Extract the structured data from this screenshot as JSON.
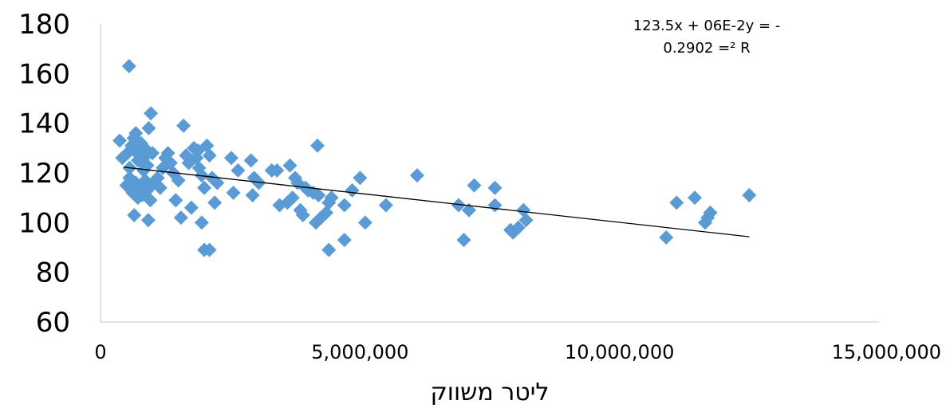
{
  "chart_data": {
    "type": "scatter",
    "title": "",
    "xlabel": "ליטר משווק",
    "ylabel": "",
    "xlim": [
      0,
      15000000
    ],
    "ylim": [
      60,
      180
    ],
    "x_ticks": [
      0,
      5000000,
      10000000,
      15000000
    ],
    "x_tick_labels": [
      "0",
      "5,000,000",
      "10,000,000",
      "15,000,000"
    ],
    "y_ticks": [
      60,
      80,
      100,
      120,
      140,
      160,
      180
    ],
    "y_tick_labels": [
      "60",
      "80",
      "100",
      "120",
      "140",
      "160",
      "180"
    ],
    "grid": false,
    "marker": "diamond",
    "marker_color": "#5B9BD5",
    "trendline": {
      "type": "linear",
      "x_start": 450000,
      "y_start": 122.3,
      "x_end": 12500000,
      "y_end": 94.3,
      "color": "#000000"
    },
    "equation": {
      "line1": "123.5x + 06E-2y = -",
      "line2": "0.2902 =² R"
    },
    "points": [
      [
        550000,
        163
      ],
      [
        370000,
        133
      ],
      [
        420000,
        126
      ],
      [
        520000,
        128
      ],
      [
        560000,
        122
      ],
      [
        600000,
        131
      ],
      [
        640000,
        134
      ],
      [
        680000,
        136
      ],
      [
        700000,
        129
      ],
      [
        720000,
        125
      ],
      [
        750000,
        127
      ],
      [
        780000,
        132
      ],
      [
        800000,
        124
      ],
      [
        830000,
        121
      ],
      [
        850000,
        130
      ],
      [
        880000,
        127
      ],
      [
        900000,
        123
      ],
      [
        930000,
        138
      ],
      [
        970000,
        144
      ],
      [
        1000000,
        128
      ],
      [
        500000,
        115
      ],
      [
        560000,
        118
      ],
      [
        620000,
        112
      ],
      [
        680000,
        116
      ],
      [
        720000,
        110
      ],
      [
        760000,
        114
      ],
      [
        800000,
        111
      ],
      [
        860000,
        117
      ],
      [
        900000,
        113
      ],
      [
        960000,
        109
      ],
      [
        1020000,
        116
      ],
      [
        1100000,
        118
      ],
      [
        1150000,
        114
      ],
      [
        650000,
        103
      ],
      [
        920000,
        101
      ],
      [
        1200000,
        122
      ],
      [
        1250000,
        126
      ],
      [
        1300000,
        128
      ],
      [
        1350000,
        124
      ],
      [
        1400000,
        120
      ],
      [
        1450000,
        109
      ],
      [
        1500000,
        117
      ],
      [
        1550000,
        102
      ],
      [
        1600000,
        139
      ],
      [
        1650000,
        127
      ],
      [
        1700000,
        124
      ],
      [
        1750000,
        106
      ],
      [
        1800000,
        130
      ],
      [
        1850000,
        126
      ],
      [
        1900000,
        122
      ],
      [
        1950000,
        100
      ],
      [
        2000000,
        114
      ],
      [
        2050000,
        131
      ],
      [
        2100000,
        127
      ],
      [
        2150000,
        118
      ],
      [
        2200000,
        108
      ],
      [
        2250000,
        116
      ],
      [
        2000000,
        89
      ],
      [
        2100000,
        89
      ],
      [
        1880000,
        129
      ],
      [
        1950000,
        119
      ],
      [
        2520000,
        126
      ],
      [
        2560000,
        112
      ],
      [
        2650000,
        121
      ],
      [
        2900000,
        125
      ],
      [
        2930000,
        111
      ],
      [
        2960000,
        118
      ],
      [
        3050000,
        116
      ],
      [
        3300000,
        121
      ],
      [
        3400000,
        121
      ],
      [
        3450000,
        107
      ],
      [
        3600000,
        108
      ],
      [
        3700000,
        110
      ],
      [
        3650000,
        123
      ],
      [
        3750000,
        118
      ],
      [
        3800000,
        116
      ],
      [
        3850000,
        105
      ],
      [
        3900000,
        103
      ],
      [
        3950000,
        114
      ],
      [
        4000000,
        113
      ],
      [
        4100000,
        112
      ],
      [
        4150000,
        100
      ],
      [
        4180000,
        131
      ],
      [
        4200000,
        111
      ],
      [
        4250000,
        102
      ],
      [
        4350000,
        104
      ],
      [
        4400000,
        108
      ],
      [
        4450000,
        110
      ],
      [
        4400000,
        89
      ],
      [
        4700000,
        107
      ],
      [
        4700000,
        93
      ],
      [
        4850000,
        113
      ],
      [
        5000000,
        118
      ],
      [
        5100000,
        100
      ],
      [
        5500000,
        107
      ],
      [
        6100000,
        119
      ],
      [
        6900000,
        107
      ],
      [
        7000000,
        93
      ],
      [
        7100000,
        105
      ],
      [
        7200000,
        115
      ],
      [
        7600000,
        114
      ],
      [
        7600000,
        107
      ],
      [
        7900000,
        97
      ],
      [
        7950000,
        96
      ],
      [
        8050000,
        98
      ],
      [
        8150000,
        105
      ],
      [
        8200000,
        101
      ],
      [
        10900000,
        94
      ],
      [
        11100000,
        108
      ],
      [
        11450000,
        110
      ],
      [
        11650000,
        100
      ],
      [
        11700000,
        102
      ],
      [
        11750000,
        104
      ],
      [
        12500000,
        111
      ]
    ]
  }
}
